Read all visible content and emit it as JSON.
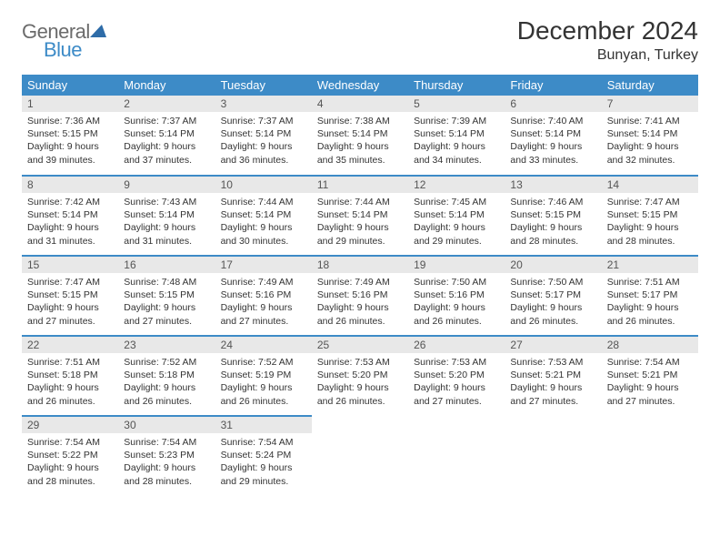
{
  "logo": {
    "word1": "General",
    "word2": "Blue"
  },
  "title": "December 2024",
  "location": "Bunyan, Turkey",
  "colors": {
    "header_bg": "#3d8bc7",
    "header_text": "#ffffff",
    "daynum_bg": "#e8e8e8",
    "border": "#3d8bc7",
    "logo_gray": "#6b6b6b",
    "logo_blue": "#3d8bc7"
  },
  "day_names": [
    "Sunday",
    "Monday",
    "Tuesday",
    "Wednesday",
    "Thursday",
    "Friday",
    "Saturday"
  ],
  "weeks": [
    [
      {
        "n": "1",
        "sr": "7:36 AM",
        "ss": "5:15 PM",
        "dl": "9 hours and 39 minutes."
      },
      {
        "n": "2",
        "sr": "7:37 AM",
        "ss": "5:14 PM",
        "dl": "9 hours and 37 minutes."
      },
      {
        "n": "3",
        "sr": "7:37 AM",
        "ss": "5:14 PM",
        "dl": "9 hours and 36 minutes."
      },
      {
        "n": "4",
        "sr": "7:38 AM",
        "ss": "5:14 PM",
        "dl": "9 hours and 35 minutes."
      },
      {
        "n": "5",
        "sr": "7:39 AM",
        "ss": "5:14 PM",
        "dl": "9 hours and 34 minutes."
      },
      {
        "n": "6",
        "sr": "7:40 AM",
        "ss": "5:14 PM",
        "dl": "9 hours and 33 minutes."
      },
      {
        "n": "7",
        "sr": "7:41 AM",
        "ss": "5:14 PM",
        "dl": "9 hours and 32 minutes."
      }
    ],
    [
      {
        "n": "8",
        "sr": "7:42 AM",
        "ss": "5:14 PM",
        "dl": "9 hours and 31 minutes."
      },
      {
        "n": "9",
        "sr": "7:43 AM",
        "ss": "5:14 PM",
        "dl": "9 hours and 31 minutes."
      },
      {
        "n": "10",
        "sr": "7:44 AM",
        "ss": "5:14 PM",
        "dl": "9 hours and 30 minutes."
      },
      {
        "n": "11",
        "sr": "7:44 AM",
        "ss": "5:14 PM",
        "dl": "9 hours and 29 minutes."
      },
      {
        "n": "12",
        "sr": "7:45 AM",
        "ss": "5:14 PM",
        "dl": "9 hours and 29 minutes."
      },
      {
        "n": "13",
        "sr": "7:46 AM",
        "ss": "5:15 PM",
        "dl": "9 hours and 28 minutes."
      },
      {
        "n": "14",
        "sr": "7:47 AM",
        "ss": "5:15 PM",
        "dl": "9 hours and 28 minutes."
      }
    ],
    [
      {
        "n": "15",
        "sr": "7:47 AM",
        "ss": "5:15 PM",
        "dl": "9 hours and 27 minutes."
      },
      {
        "n": "16",
        "sr": "7:48 AM",
        "ss": "5:15 PM",
        "dl": "9 hours and 27 minutes."
      },
      {
        "n": "17",
        "sr": "7:49 AM",
        "ss": "5:16 PM",
        "dl": "9 hours and 27 minutes."
      },
      {
        "n": "18",
        "sr": "7:49 AM",
        "ss": "5:16 PM",
        "dl": "9 hours and 26 minutes."
      },
      {
        "n": "19",
        "sr": "7:50 AM",
        "ss": "5:16 PM",
        "dl": "9 hours and 26 minutes."
      },
      {
        "n": "20",
        "sr": "7:50 AM",
        "ss": "5:17 PM",
        "dl": "9 hours and 26 minutes."
      },
      {
        "n": "21",
        "sr": "7:51 AM",
        "ss": "5:17 PM",
        "dl": "9 hours and 26 minutes."
      }
    ],
    [
      {
        "n": "22",
        "sr": "7:51 AM",
        "ss": "5:18 PM",
        "dl": "9 hours and 26 minutes."
      },
      {
        "n": "23",
        "sr": "7:52 AM",
        "ss": "5:18 PM",
        "dl": "9 hours and 26 minutes."
      },
      {
        "n": "24",
        "sr": "7:52 AM",
        "ss": "5:19 PM",
        "dl": "9 hours and 26 minutes."
      },
      {
        "n": "25",
        "sr": "7:53 AM",
        "ss": "5:20 PM",
        "dl": "9 hours and 26 minutes."
      },
      {
        "n": "26",
        "sr": "7:53 AM",
        "ss": "5:20 PM",
        "dl": "9 hours and 27 minutes."
      },
      {
        "n": "27",
        "sr": "7:53 AM",
        "ss": "5:21 PM",
        "dl": "9 hours and 27 minutes."
      },
      {
        "n": "28",
        "sr": "7:54 AM",
        "ss": "5:21 PM",
        "dl": "9 hours and 27 minutes."
      }
    ],
    [
      {
        "n": "29",
        "sr": "7:54 AM",
        "ss": "5:22 PM",
        "dl": "9 hours and 28 minutes."
      },
      {
        "n": "30",
        "sr": "7:54 AM",
        "ss": "5:23 PM",
        "dl": "9 hours and 28 minutes."
      },
      {
        "n": "31",
        "sr": "7:54 AM",
        "ss": "5:24 PM",
        "dl": "9 hours and 29 minutes."
      },
      null,
      null,
      null,
      null
    ]
  ],
  "labels": {
    "sunrise": "Sunrise:",
    "sunset": "Sunset:",
    "daylight": "Daylight:"
  }
}
